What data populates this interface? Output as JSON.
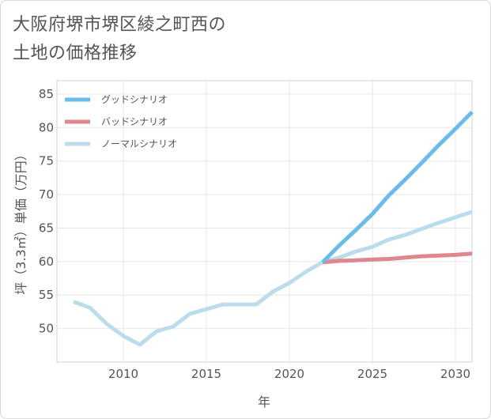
{
  "title_lines": [
    "大阪府堺市堺区綾之町西の",
    "土地の価格推移"
  ],
  "chart_data": {
    "type": "line",
    "xlabel": "年",
    "ylabel": "坪（3.3㎡）単価（万円）",
    "xlim": [
      2006,
      2031
    ],
    "ylim": [
      45,
      87
    ],
    "xticks": [
      2010,
      2015,
      2020,
      2025,
      2030
    ],
    "yticks": [
      50,
      55,
      60,
      65,
      70,
      75,
      80,
      85
    ],
    "legend_position": "top-left",
    "series": [
      {
        "name": "グッドシナリオ",
        "color": "#6bbcea",
        "x": [
          2022,
          2023,
          2024,
          2025,
          2026,
          2027,
          2028,
          2029,
          2030,
          2031
        ],
        "values": [
          59.9,
          62.4,
          64.7,
          67.1,
          69.9,
          72.3,
          74.8,
          77.4,
          79.8,
          82.3
        ]
      },
      {
        "name": "バッドシナリオ",
        "color": "#e0868f",
        "x": [
          2022,
          2023,
          2024,
          2025,
          2026,
          2027,
          2028,
          2029,
          2030,
          2031
        ],
        "values": [
          59.9,
          60.1,
          60.2,
          60.3,
          60.4,
          60.6,
          60.8,
          60.9,
          61.0,
          61.2
        ]
      },
      {
        "name": "ノーマルシナリオ",
        "color": "#bcdcea",
        "x": [
          2007,
          2008,
          2009,
          2010,
          2011,
          2012,
          2013,
          2014,
          2015,
          2016,
          2017,
          2018,
          2019,
          2020,
          2021,
          2022,
          2023,
          2024,
          2025,
          2026,
          2027,
          2028,
          2029,
          2030,
          2031
        ],
        "values": [
          54.0,
          53.1,
          50.7,
          48.9,
          47.6,
          49.6,
          50.3,
          52.2,
          52.9,
          53.6,
          53.6,
          53.6,
          55.5,
          56.8,
          58.5,
          59.9,
          60.6,
          61.5,
          62.2,
          63.3,
          64.0,
          64.9,
          65.8,
          66.6,
          67.4
        ]
      }
    ]
  }
}
